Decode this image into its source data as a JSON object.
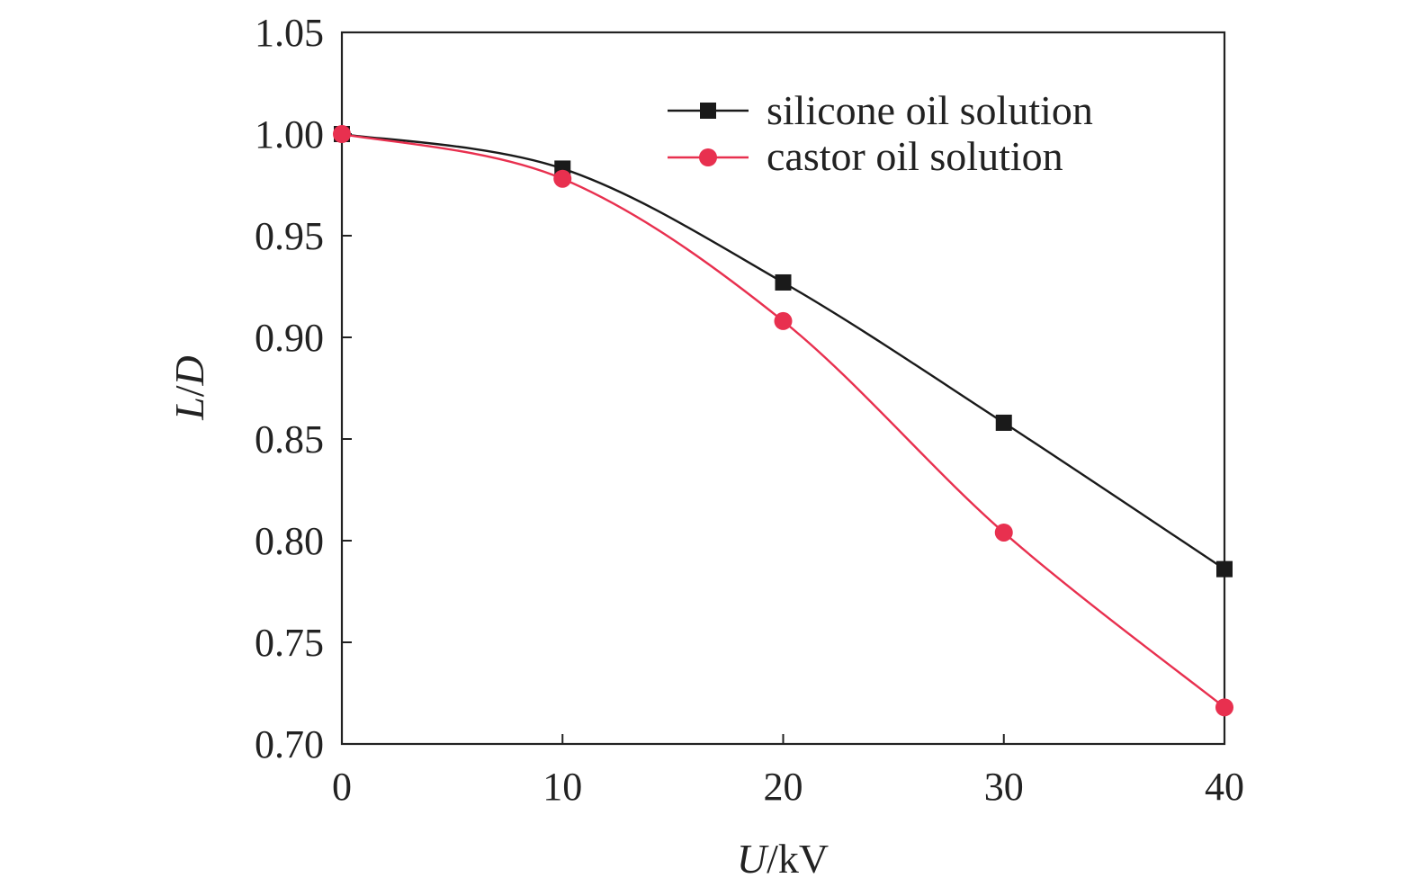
{
  "chart_data": {
    "type": "line",
    "x": [
      0,
      10,
      20,
      30,
      40
    ],
    "series": [
      {
        "name": "silicone oil solution",
        "values": [
          1.0,
          0.983,
          0.927,
          0.858,
          0.786
        ],
        "color": "#1a1a1a",
        "marker": "square"
      },
      {
        "name": "castor oil solution",
        "values": [
          1.0,
          0.978,
          0.908,
          0.804,
          0.718
        ],
        "color": "#e8304f",
        "marker": "circle"
      }
    ],
    "xlabel": {
      "var": "U",
      "unit": "/kV"
    },
    "ylabel": {
      "num": "L",
      "sep": "/",
      "den": "D"
    },
    "xlim": [
      0,
      40
    ],
    "ylim": [
      0.7,
      1.05
    ],
    "xticks": [
      0,
      10,
      20,
      30,
      40
    ],
    "xtick_labels": [
      "0",
      "10",
      "20",
      "30",
      "40"
    ],
    "yticks": [
      0.7,
      0.75,
      0.8,
      0.85,
      0.9,
      0.95,
      1.0,
      1.05
    ],
    "ytick_labels": [
      "0.70",
      "0.75",
      "0.80",
      "0.85",
      "0.90",
      "0.95",
      "1.00",
      "1.05"
    ],
    "grid": false,
    "legend_position": "top-right"
  }
}
